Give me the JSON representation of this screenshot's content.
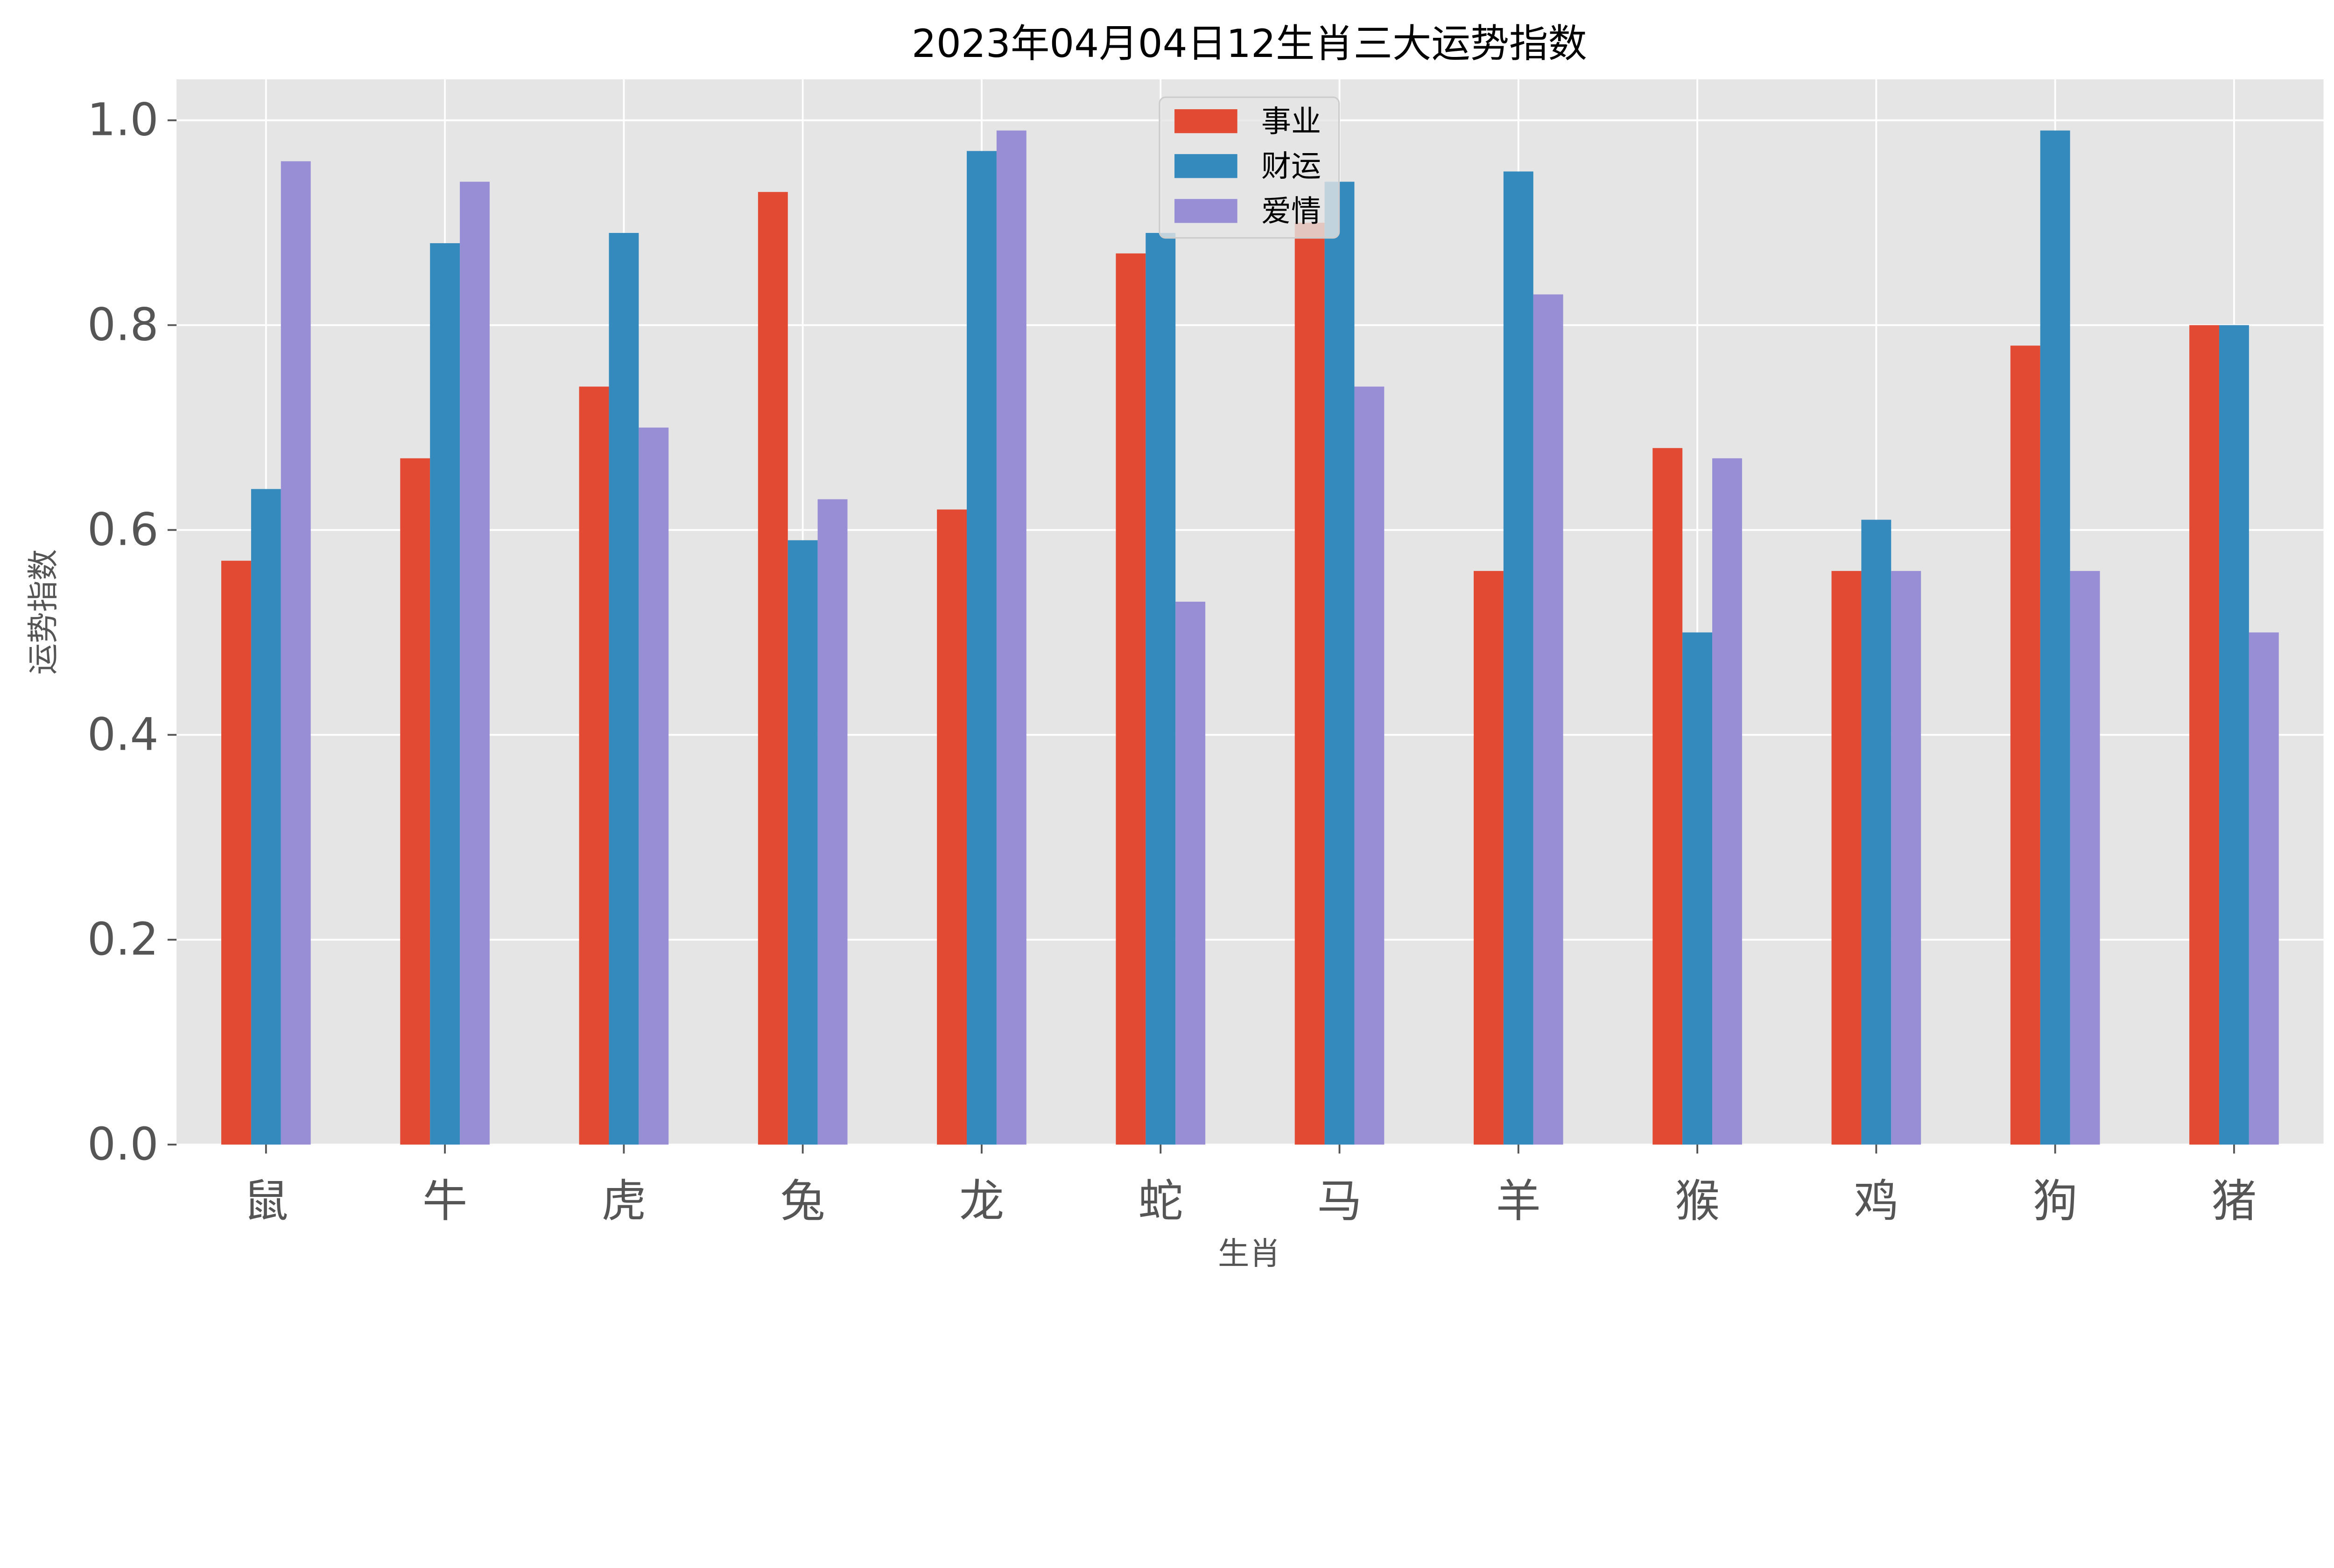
{
  "chart_data": {
    "type": "bar",
    "title": "2023年04月04日12生肖三大运势指数",
    "xlabel": "生肖",
    "ylabel": "运势指数",
    "categories": [
      "鼠",
      "牛",
      "虎",
      "兔",
      "龙",
      "蛇",
      "马",
      "羊",
      "猴",
      "鸡",
      "狗",
      "猪"
    ],
    "series": [
      {
        "name": "事业",
        "color": "#E24A33",
        "values": [
          0.57,
          0.67,
          0.74,
          0.93,
          0.62,
          0.87,
          0.9,
          0.56,
          0.68,
          0.56,
          0.78,
          0.8
        ]
      },
      {
        "name": "财运",
        "color": "#348ABD",
        "values": [
          0.64,
          0.88,
          0.89,
          0.59,
          0.97,
          0.89,
          0.94,
          0.95,
          0.5,
          0.61,
          0.99,
          0.8
        ]
      },
      {
        "name": "爱情",
        "color": "#988ED5",
        "values": [
          0.96,
          0.94,
          0.7,
          0.63,
          0.99,
          0.53,
          0.74,
          0.83,
          0.67,
          0.56,
          0.56,
          0.5
        ]
      }
    ],
    "yticks": [
      "0.0",
      "0.2",
      "0.4",
      "0.6",
      "0.8",
      "1.0"
    ],
    "ylim": [
      0,
      1.04
    ],
    "grid": true,
    "legend_placement": "upper center",
    "background": "#E5E5E5"
  }
}
